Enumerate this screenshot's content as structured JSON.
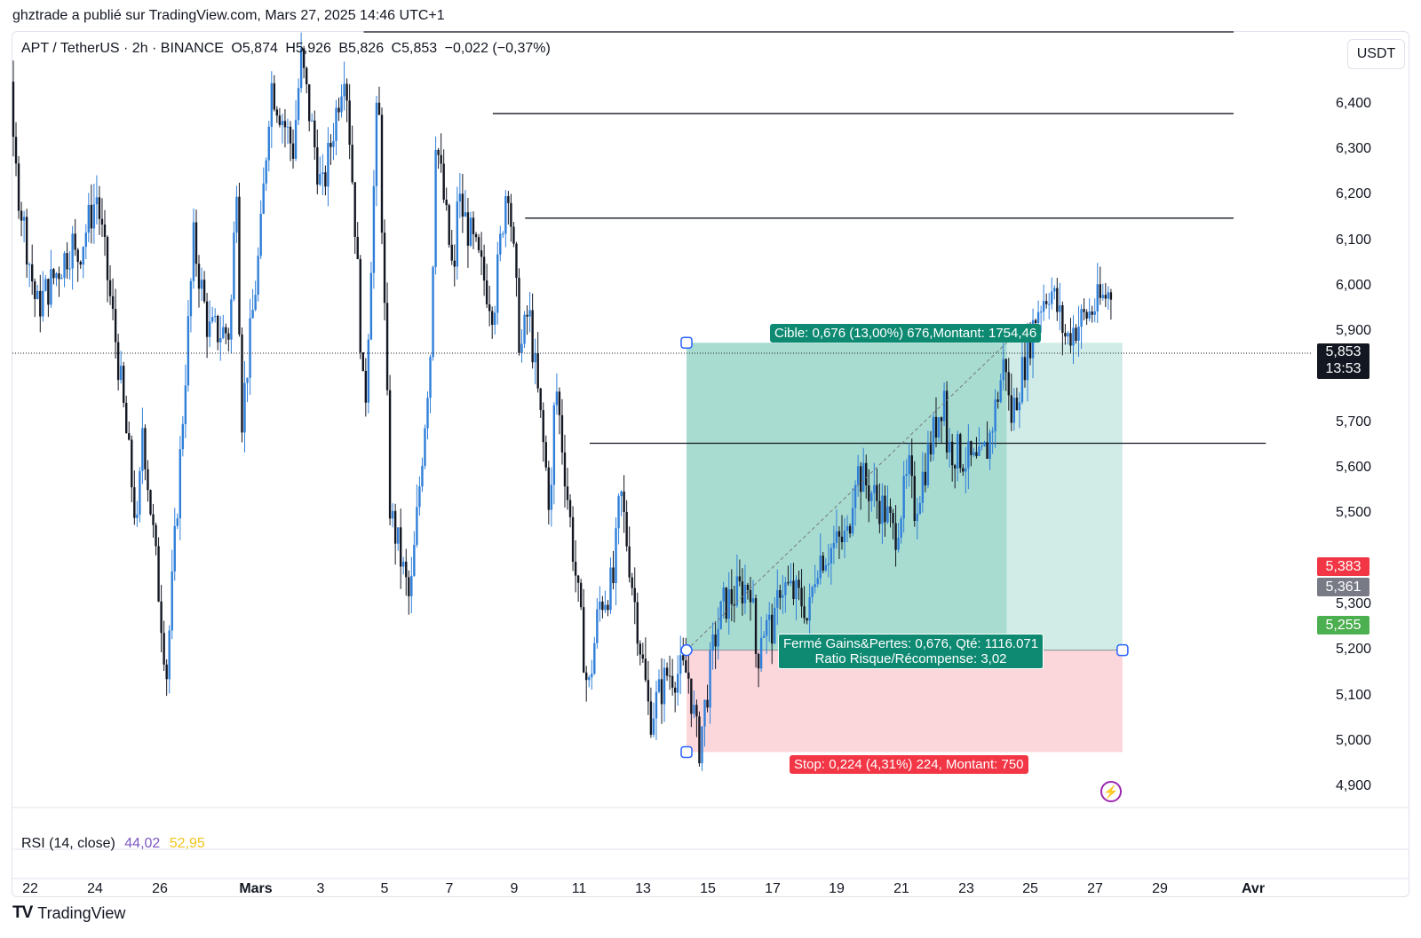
{
  "header": "ghztrade a publié sur TradingView.com, Mars 27, 2025 14:46 UTC+1",
  "legend": {
    "symbol": "APT / TetherUS · 2h · BINANCE",
    "open": "O5,874",
    "high": "H5,926",
    "low": "B5,826",
    "close": "C5,853",
    "change": "−0,022 (−0,37%)"
  },
  "currency": "USDT",
  "price_labels": [
    "6,400",
    "6,300",
    "6,200",
    "6,100",
    "6,000",
    "5,900",
    "5,700",
    "5,600",
    "5,500",
    "5,300",
    "5,200",
    "5,100",
    "5,000",
    "4,900"
  ],
  "tags": {
    "last_price": "5,853",
    "countdown": "13:53",
    "red": "5,383",
    "gray": "5,361",
    "green": "5,255"
  },
  "position": {
    "target_text": "Cible: 0,676 (13,00%) 676,Montant: 1754,46",
    "closed_line1": "Fermé Gains&Pertes: 0,676, Qté: 1116.071",
    "closed_line2": "Ratio Risque/Récompense: 3,02",
    "stop_text": "Stop: 0,224 (4,31%) 224, Montant: 750"
  },
  "rsi": {
    "label": "RSI (14, close)",
    "value1": "44,02",
    "value2": "52,95"
  },
  "x_labels": [
    "22",
    "24",
    "26",
    "Mars",
    "3",
    "5",
    "7",
    "9",
    "11",
    "13",
    "15",
    "17",
    "19",
    "21",
    "23",
    "25",
    "27",
    "29",
    "Avr"
  ],
  "footer": "TradingView",
  "colors": {
    "up": "#2f7fd9",
    "down": "#131722",
    "target_zone": "#a8dcd1",
    "target_zone_light": "#d1ece6",
    "stop_zone": "#fbd7dc",
    "target_label": "#0f8a72",
    "stop_label": "#f23645",
    "tag_red": "#f23645",
    "tag_gray": "#787b86",
    "tag_green": "#4caf50"
  },
  "chart_data": {
    "type": "candlestick",
    "title": "APT / TetherUS · 2h · BINANCE",
    "ylabel": "USDT",
    "ylim": [
      4.85,
      6.55
    ],
    "x_range": [
      "2025-02-21",
      "2025-04-01"
    ],
    "last_price": 5.853,
    "horizontal_levels": [
      {
        "price": 6.58,
        "from": "2025-03-04",
        "to": "2025-03-31"
      },
      {
        "price": 6.38,
        "from": "2025-03-08",
        "to": "2025-03-31"
      },
      {
        "price": 6.15,
        "from": "2025-03-09",
        "to": "2025-03-31"
      },
      {
        "price": 5.655,
        "from": "2025-03-11",
        "to": "2025-04-01"
      }
    ],
    "position": {
      "type": "long",
      "entry": 5.2,
      "target": 5.876,
      "stop": 4.976,
      "start": "2025-03-14",
      "end": "2025-03-28",
      "closed": "2025-03-24"
    },
    "price_path": [
      [
        "2025-02-21",
        6.45
      ],
      [
        "2025-02-21",
        6.3
      ],
      [
        "2025-02-22",
        6.0
      ],
      [
        "2025-02-22",
        5.95
      ],
      [
        "2025-02-23",
        6.1
      ],
      [
        "2025-02-23",
        6.05
      ],
      [
        "2025-02-24",
        6.2
      ],
      [
        "2025-02-24",
        5.85
      ],
      [
        "2025-02-25",
        5.7
      ],
      [
        "2025-02-25",
        5.45
      ],
      [
        "2025-02-26",
        5.15
      ],
      [
        "2025-02-26",
        5.6
      ],
      [
        "2025-02-27",
        5.9
      ],
      [
        "2025-02-27",
        6.1
      ],
      [
        "2025-02-28",
        6.25
      ],
      [
        "2025-02-28",
        5.9
      ],
      [
        "2025-02-28",
        5.7
      ],
      [
        "2025-03-01",
        6.1
      ],
      [
        "2025-03-01",
        6.45
      ],
      [
        "2025-03-02",
        6.5
      ],
      [
        "2025-03-02",
        6.3
      ],
      [
        "2025-03-03",
        6.2
      ],
      [
        "2025-03-03",
        6.5
      ],
      [
        "2025-03-04",
        6.45
      ],
      [
        "2025-03-04",
        6.1
      ],
      [
        "2025-03-04",
        5.7
      ],
      [
        "2025-03-05",
        5.3
      ],
      [
        "2025-03-05",
        5.5
      ],
      [
        "2025-03-05",
        5.45
      ],
      [
        "2025-03-06",
        5.9
      ],
      [
        "2025-03-06",
        6.35
      ],
      [
        "2025-03-07",
        6.2
      ],
      [
        "2025-03-07",
        6.0
      ],
      [
        "2025-03-08",
        6.25
      ],
      [
        "2025-03-08",
        5.95
      ],
      [
        "2025-03-09",
        5.85
      ],
      [
        "2025-03-09",
        5.95
      ],
      [
        "2025-03-10",
        5.8
      ],
      [
        "2025-03-10",
        5.5
      ],
      [
        "2025-03-11",
        5.3
      ],
      [
        "2025-03-11",
        5.1
      ],
      [
        "2025-03-12",
        5.55
      ],
      [
        "2025-03-12",
        5.35
      ],
      [
        "2025-03-13",
        5.15
      ],
      [
        "2025-03-13",
        5.05
      ],
      [
        "2025-03-14",
        4.98
      ],
      [
        "2025-03-14",
        5.15
      ],
      [
        "2025-03-15",
        5.22
      ],
      [
        "2025-03-15",
        5.3
      ],
      [
        "2025-03-16",
        5.35
      ],
      [
        "2025-03-16",
        5.25
      ],
      [
        "2025-03-16",
        5.15
      ],
      [
        "2025-03-17",
        5.25
      ],
      [
        "2025-03-17",
        5.35
      ],
      [
        "2025-03-18",
        5.4
      ],
      [
        "2025-03-18",
        5.25
      ],
      [
        "2025-03-18",
        5.3
      ],
      [
        "2025-03-19",
        5.45
      ],
      [
        "2025-03-19",
        5.6
      ],
      [
        "2025-03-20",
        5.5
      ],
      [
        "2025-03-20",
        5.45
      ],
      [
        "2025-03-21",
        5.6
      ],
      [
        "2025-03-21",
        5.5
      ],
      [
        "2025-03-22",
        5.65
      ],
      [
        "2025-03-22",
        5.78
      ],
      [
        "2025-03-23",
        5.65
      ],
      [
        "2025-03-23",
        5.6
      ],
      [
        "2025-03-24",
        5.7
      ],
      [
        "2025-03-24",
        5.85
      ],
      [
        "2025-03-25",
        5.95
      ],
      [
        "2025-03-25",
        6.0
      ],
      [
        "2025-03-26",
        5.88
      ],
      [
        "2025-03-26",
        5.9
      ],
      [
        "2025-03-27",
        6.0
      ],
      [
        "2025-03-27",
        5.853
      ]
    ]
  }
}
